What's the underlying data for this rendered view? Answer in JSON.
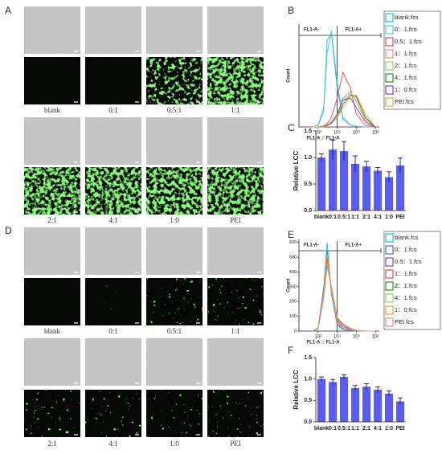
{
  "figure": {
    "panel_labels": [
      "A",
      "B",
      "C",
      "D",
      "E",
      "F"
    ],
    "captions_A": [
      "blank",
      "0:1",
      "0.5:1",
      "1:1",
      "2:1",
      "4:1",
      "1:0",
      "PEI"
    ],
    "captions_D": [
      "blank",
      "0:1",
      "0.5:1",
      "1:1",
      "2:1",
      "4:1",
      "1:0",
      "PEI"
    ]
  },
  "chart_data": [
    {
      "type": "line",
      "x_label": "FL1-A :: FL1-A",
      "y_label": "Count",
      "gate_labels": [
        "FL1-A-",
        "FL1-A+"
      ],
      "gate": 10000,
      "xscale": "log",
      "xlim": [
        100,
        1600000
      ],
      "xticks": [
        {
          "value": 1000,
          "label": "10³"
        },
        {
          "value": 10000,
          "label": "10⁴"
        },
        {
          "value": 100000,
          "label": "10⁵"
        },
        {
          "value": 1000000,
          "label": "10⁶"
        }
      ],
      "ylim": [
        0,
        320
      ],
      "x": [
        500,
        1000,
        2000,
        3000,
        5000,
        10000,
        20000,
        50000,
        100000,
        300000,
        1000000
      ],
      "series": [
        {
          "name": "blank.fcs",
          "color": "#1fb8d8",
          "values": [
            0,
            5,
            60,
            270,
            290,
            120,
            25,
            5,
            2,
            0,
            0
          ]
        },
        {
          "name": "0：1.fcs",
          "color": "#4ccbe0",
          "values": [
            0,
            4,
            50,
            230,
            300,
            140,
            30,
            6,
            2,
            0,
            0
          ]
        },
        {
          "name": "0.5：1.fcs",
          "color": "#e04a4a",
          "values": [
            0,
            0,
            3,
            10,
            30,
            90,
            170,
            120,
            40,
            5,
            0
          ]
        },
        {
          "name": "1：1.fcs",
          "color": "#f08a8a",
          "values": [
            0,
            0,
            2,
            6,
            15,
            40,
            90,
            110,
            80,
            20,
            0
          ]
        },
        {
          "name": "2：1.fcs",
          "color": "#8ed26a",
          "values": [
            0,
            0,
            2,
            5,
            12,
            35,
            80,
            105,
            90,
            25,
            0
          ]
        },
        {
          "name": "4：1.fcs",
          "color": "#2e8b2e",
          "values": [
            0,
            0,
            2,
            5,
            10,
            30,
            70,
            100,
            95,
            30,
            0
          ]
        },
        {
          "name": "1：0.fcs",
          "color": "#8a3fb0",
          "values": [
            0,
            0,
            2,
            6,
            14,
            40,
            85,
            90,
            60,
            15,
            0
          ]
        },
        {
          "name": "PEI.fcs",
          "color": "#f0a030",
          "values": [
            0,
            0,
            1,
            4,
            10,
            30,
            60,
            95,
            100,
            40,
            0
          ]
        }
      ]
    },
    {
      "type": "bar",
      "y_label": "Relative LCC",
      "categories": [
        "blank",
        "0:1",
        "0.5:1",
        "1:1",
        "2:1",
        "4:1",
        "1:0",
        "PEI"
      ],
      "values": [
        1.0,
        1.15,
        1.12,
        0.88,
        0.83,
        0.75,
        0.63,
        0.85
      ],
      "errors": [
        0.07,
        0.18,
        0.18,
        0.15,
        0.1,
        0.06,
        0.1,
        0.14
      ],
      "color": "#5a5cf0",
      "ylim": [
        0,
        1.5
      ],
      "yticks": [
        {
          "value": 0,
          "label": "0.0"
        },
        {
          "value": 0.5,
          "label": "0.5"
        },
        {
          "value": 1,
          "label": "1.0"
        },
        {
          "value": 1.5,
          "label": "1.5"
        }
      ]
    },
    {
      "type": "line",
      "x_label": "FL1-A :: FL1-A",
      "y_label": "Count",
      "gate_labels": [
        "FL1-A-",
        "FL1-A+"
      ],
      "gate": 10000,
      "xscale": "log",
      "xlim": [
        100,
        1600000
      ],
      "xticks": [
        {
          "value": 1000,
          "label": "10³"
        },
        {
          "value": 10000,
          "label": "10⁴"
        },
        {
          "value": 100000,
          "label": "10⁵"
        },
        {
          "value": 1000000,
          "label": "10⁶"
        }
      ],
      "ylim": [
        0,
        620
      ],
      "yticks": [
        0,
        100,
        200,
        300,
        400,
        500,
        600
      ],
      "x": [
        500,
        1000,
        2000,
        3000,
        5000,
        10000,
        20000,
        50000,
        100000,
        300000,
        1000000
      ],
      "series": [
        {
          "name": "blank.fcs",
          "color": "#1fb8d8",
          "values": [
            0,
            20,
            300,
            600,
            250,
            40,
            10,
            3,
            0,
            0,
            0
          ]
        },
        {
          "name": "0：1.fcs",
          "color": "#3f6fd0",
          "values": [
            0,
            18,
            280,
            540,
            260,
            50,
            12,
            4,
            0,
            0,
            0
          ]
        },
        {
          "name": "0.5：1.fcs",
          "color": "#8a3fb0",
          "values": [
            0,
            15,
            250,
            500,
            280,
            70,
            30,
            12,
            3,
            0,
            0
          ]
        },
        {
          "name": "1：1.fcs",
          "color": "#e04a4a",
          "values": [
            0,
            15,
            240,
            470,
            290,
            80,
            40,
            15,
            4,
            0,
            0
          ]
        },
        {
          "name": "2：1.fcs",
          "color": "#2e8b2e",
          "values": [
            0,
            14,
            230,
            450,
            300,
            90,
            45,
            18,
            5,
            0,
            0
          ]
        },
        {
          "name": "4：1.fcs",
          "color": "#8ed26a",
          "values": [
            0,
            14,
            220,
            430,
            300,
            95,
            50,
            20,
            5,
            0,
            0
          ]
        },
        {
          "name": "1：0.fcs",
          "color": "#f0a030",
          "values": [
            0,
            16,
            260,
            520,
            270,
            60,
            20,
            8,
            2,
            0,
            0
          ]
        },
        {
          "name": "PEI.fcs",
          "color": "#f08a8a",
          "values": [
            0,
            14,
            235,
            460,
            295,
            85,
            42,
            16,
            4,
            0,
            0
          ]
        }
      ]
    },
    {
      "type": "bar",
      "y_label": "Relative LCC",
      "categories": [
        "blank",
        "0:1",
        "0.5:1",
        "1:1",
        "2:1",
        "4:1",
        "1:0",
        "PEI"
      ],
      "values": [
        1.0,
        0.93,
        1.05,
        0.79,
        0.82,
        0.75,
        0.66,
        0.48
      ],
      "errors": [
        0.05,
        0.06,
        0.05,
        0.06,
        0.07,
        0.07,
        0.06,
        0.08
      ],
      "color": "#5a5cf0",
      "ylim": [
        0,
        1.5
      ],
      "yticks": [
        {
          "value": 0,
          "label": "0.0"
        },
        {
          "value": 0.5,
          "label": "0.5"
        },
        {
          "value": 1,
          "label": "1.0"
        },
        {
          "value": 1.5,
          "label": "1.5"
        }
      ]
    }
  ]
}
